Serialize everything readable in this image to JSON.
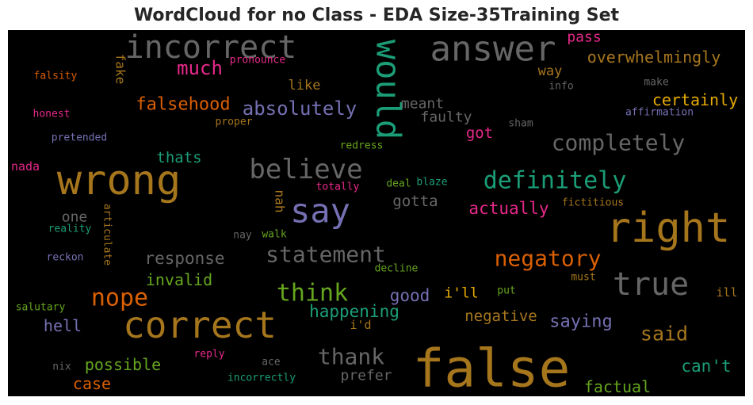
{
  "chart_data": {
    "type": "wordcloud",
    "title": "WordCloud for no Class - EDA Size-35Training Set",
    "background": "#000000",
    "words": [
      {
        "text": "incorrect",
        "color": "#666666"
      },
      {
        "text": "answer",
        "color": "#666666"
      },
      {
        "text": "would",
        "color": "#1b9e77"
      },
      {
        "text": "pass",
        "color": "#e7298a"
      },
      {
        "text": "overwhelmingly",
        "color": "#a6761d"
      },
      {
        "text": "much",
        "color": "#e7298a"
      },
      {
        "text": "fake",
        "color": "#a6761d"
      },
      {
        "text": "pronounce",
        "color": "#e7298a"
      },
      {
        "text": "falsity",
        "color": "#d95f02"
      },
      {
        "text": "way",
        "color": "#a6761d"
      },
      {
        "text": "info",
        "color": "#666666"
      },
      {
        "text": "make",
        "color": "#666666"
      },
      {
        "text": "like",
        "color": "#a6761d"
      },
      {
        "text": "falsehood",
        "color": "#d95f02"
      },
      {
        "text": "absolutely",
        "color": "#7570b3"
      },
      {
        "text": "meant",
        "color": "#666666"
      },
      {
        "text": "certainly",
        "color": "#e6ab02"
      },
      {
        "text": "honest",
        "color": "#e7298a"
      },
      {
        "text": "proper",
        "color": "#a6761d"
      },
      {
        "text": "faulty",
        "color": "#666666"
      },
      {
        "text": "affirmation",
        "color": "#7570b3"
      },
      {
        "text": "sham",
        "color": "#666666"
      },
      {
        "text": "got",
        "color": "#e7298a"
      },
      {
        "text": "completely",
        "color": "#666666"
      },
      {
        "text": "pretended",
        "color": "#7570b3"
      },
      {
        "text": "redress",
        "color": "#66a61e"
      },
      {
        "text": "thats",
        "color": "#1b9e77"
      },
      {
        "text": "wrong",
        "color": "#a6761d"
      },
      {
        "text": "believe",
        "color": "#666666"
      },
      {
        "text": "definitely",
        "color": "#1b9e77"
      },
      {
        "text": "nada",
        "color": "#e7298a"
      },
      {
        "text": "deal",
        "color": "#66a61e"
      },
      {
        "text": "blaze",
        "color": "#1b9e77"
      },
      {
        "text": "totally",
        "color": "#e7298a"
      },
      {
        "text": "nah",
        "color": "#a6761d"
      },
      {
        "text": "say",
        "color": "#7570b3"
      },
      {
        "text": "gotta",
        "color": "#666666"
      },
      {
        "text": "actually",
        "color": "#e7298a"
      },
      {
        "text": "fictitious",
        "color": "#a6761d"
      },
      {
        "text": "one",
        "color": "#666666"
      },
      {
        "text": "articulate",
        "color": "#a6761d"
      },
      {
        "text": "reality",
        "color": "#1b9e77"
      },
      {
        "text": "right",
        "color": "#a6761d"
      },
      {
        "text": "nay",
        "color": "#666666"
      },
      {
        "text": "walk",
        "color": "#66a61e"
      },
      {
        "text": "response",
        "color": "#666666"
      },
      {
        "text": "statement",
        "color": "#666666"
      },
      {
        "text": "reckon",
        "color": "#7570b3"
      },
      {
        "text": "negatory",
        "color": "#d95f02"
      },
      {
        "text": "decline",
        "color": "#66a61e"
      },
      {
        "text": "invalid",
        "color": "#66a61e"
      },
      {
        "text": "must",
        "color": "#a6761d"
      },
      {
        "text": "true",
        "color": "#666666"
      },
      {
        "text": "think",
        "color": "#66a61e"
      },
      {
        "text": "nope",
        "color": "#d95f02"
      },
      {
        "text": "good",
        "color": "#7570b3"
      },
      {
        "text": "i'll",
        "color": "#e6ab02"
      },
      {
        "text": "put",
        "color": "#66a61e"
      },
      {
        "text": "ill",
        "color": "#a6761d"
      },
      {
        "text": "salutary",
        "color": "#66a61e"
      },
      {
        "text": "happening",
        "color": "#1b9e77"
      },
      {
        "text": "correct",
        "color": "#a6761d"
      },
      {
        "text": "negative",
        "color": "#a6761d"
      },
      {
        "text": "saying",
        "color": "#7570b3"
      },
      {
        "text": "hell",
        "color": "#7570b3"
      },
      {
        "text": "i'd",
        "color": "#a6761d"
      },
      {
        "text": "said",
        "color": "#a6761d"
      },
      {
        "text": "thank",
        "color": "#666666"
      },
      {
        "text": "false",
        "color": "#a6761d"
      },
      {
        "text": "reply",
        "color": "#e7298a"
      },
      {
        "text": "ace",
        "color": "#666666"
      },
      {
        "text": "possible",
        "color": "#66a61e"
      },
      {
        "text": "nix",
        "color": "#666666"
      },
      {
        "text": "prefer",
        "color": "#666666"
      },
      {
        "text": "can't",
        "color": "#1b9e77"
      },
      {
        "text": "incorrectly",
        "color": "#1b9e77"
      },
      {
        "text": "case",
        "color": "#d95f02"
      },
      {
        "text": "factual",
        "color": "#66a61e"
      }
    ]
  }
}
